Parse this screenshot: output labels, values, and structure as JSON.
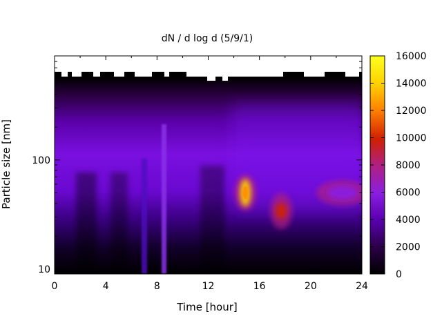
{
  "chart_data": {
    "type": "heatmap",
    "title": "dN / d log d (5/9/1)",
    "xlabel": "Time [hour]",
    "ylabel": "Particle size [nm]",
    "xlim": [
      0,
      24
    ],
    "ylim": [
      9,
      900
    ],
    "y_scale": "log",
    "x_ticks": [
      0,
      4,
      8,
      12,
      16,
      20,
      24
    ],
    "y_ticks": [
      10,
      100
    ],
    "colorbar": {
      "range": [
        0,
        16000
      ],
      "ticks": [
        0,
        2000,
        4000,
        6000,
        8000,
        10000,
        12000,
        14000,
        16000
      ],
      "palette": [
        "#000000",
        "#2a0045",
        "#5a00b0",
        "#8b1ee0",
        "#b02080",
        "#d02000",
        "#ff8000",
        "#ffd000",
        "#ffff20"
      ]
    },
    "features": [
      {
        "label": "peak",
        "time": 14.9,
        "size": 50,
        "value": 14000
      },
      {
        "label": "peak",
        "time": 17.7,
        "size": 34,
        "value": 9000
      },
      {
        "label": "peak",
        "time": 22.5,
        "size": 50,
        "value": 6500
      }
    ]
  }
}
